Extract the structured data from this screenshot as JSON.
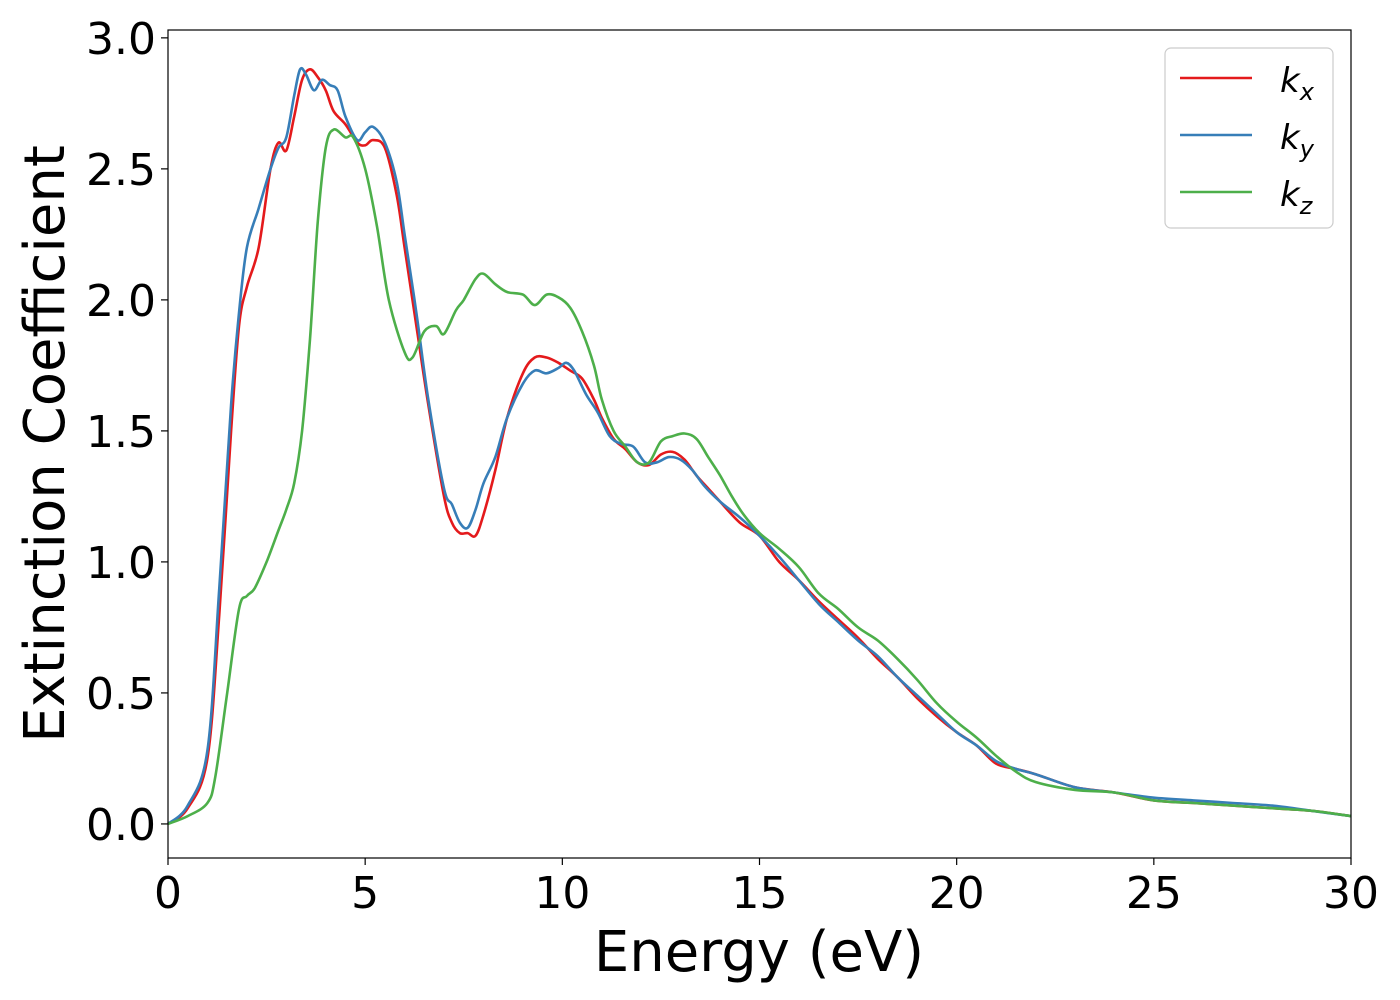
{
  "chart_data": {
    "type": "line",
    "xlabel": "Energy (eV)",
    "ylabel": "Extinction Coefficient",
    "xlim": [
      0,
      30
    ],
    "ylim": [
      -0.13,
      3.03
    ],
    "xticks": [
      0,
      5,
      10,
      15,
      20,
      25,
      30
    ],
    "xtick_labels": [
      "0",
      "5",
      "10",
      "15",
      "20",
      "25",
      "30"
    ],
    "yticks": [
      0.0,
      0.5,
      1.0,
      1.5,
      2.0,
      2.5,
      3.0
    ],
    "ytick_labels": [
      "0.0",
      "0.5",
      "1.0",
      "1.5",
      "2.0",
      "2.5",
      "3.0"
    ],
    "grid": false,
    "legend_position": "top-right",
    "series": [
      {
        "name": "k_x",
        "label_main": "k",
        "label_sub": "x",
        "color": "#e41a1c",
        "x": [
          0,
          0.5,
          1.0,
          1.3,
          1.6,
          1.8,
          2.0,
          2.3,
          2.6,
          2.8,
          3.0,
          3.2,
          3.4,
          3.6,
          3.8,
          4.0,
          4.2,
          4.5,
          4.8,
          5.0,
          5.2,
          5.5,
          5.8,
          6.0,
          6.3,
          6.6,
          7.0,
          7.2,
          7.4,
          7.6,
          7.8,
          8.0,
          8.3,
          8.6,
          9.0,
          9.3,
          9.6,
          9.9,
          10.2,
          10.5,
          10.8,
          11.0,
          11.3,
          11.6,
          11.9,
          12.2,
          12.5,
          12.8,
          13.1,
          13.4,
          13.7,
          14.0,
          14.5,
          15.0,
          15.5,
          16.0,
          16.5,
          17.0,
          17.5,
          18.0,
          18.5,
          19.0,
          19.5,
          20.0,
          20.5,
          21.0,
          21.5,
          22.0,
          23.0,
          24.0,
          25.0,
          26.0,
          27.0,
          28.0,
          29.0,
          30.0
        ],
        "values": [
          0.0,
          0.06,
          0.25,
          0.8,
          1.5,
          1.9,
          2.05,
          2.2,
          2.5,
          2.6,
          2.57,
          2.7,
          2.84,
          2.88,
          2.85,
          2.8,
          2.72,
          2.67,
          2.6,
          2.59,
          2.61,
          2.58,
          2.4,
          2.2,
          1.9,
          1.6,
          1.25,
          1.15,
          1.11,
          1.11,
          1.1,
          1.18,
          1.35,
          1.55,
          1.72,
          1.78,
          1.78,
          1.76,
          1.73,
          1.7,
          1.62,
          1.55,
          1.47,
          1.43,
          1.38,
          1.37,
          1.41,
          1.42,
          1.39,
          1.33,
          1.28,
          1.23,
          1.15,
          1.1,
          1.0,
          0.93,
          0.85,
          0.78,
          0.71,
          0.63,
          0.56,
          0.48,
          0.41,
          0.35,
          0.3,
          0.23,
          0.21,
          0.19,
          0.14,
          0.12,
          0.09,
          0.08,
          0.07,
          0.06,
          0.05,
          0.03
        ]
      },
      {
        "name": "k_y",
        "label_main": "k",
        "label_sub": "y",
        "color": "#377eb8",
        "x": [
          0,
          0.5,
          1.0,
          1.3,
          1.6,
          1.8,
          2.0,
          2.3,
          2.6,
          2.8,
          3.0,
          3.2,
          3.35,
          3.5,
          3.7,
          3.9,
          4.1,
          4.3,
          4.5,
          4.8,
          5.0,
          5.2,
          5.5,
          5.8,
          6.0,
          6.3,
          6.6,
          7.0,
          7.2,
          7.4,
          7.6,
          7.8,
          8.0,
          8.3,
          8.6,
          9.0,
          9.3,
          9.6,
          9.9,
          10.1,
          10.3,
          10.6,
          10.9,
          11.2,
          11.5,
          11.8,
          12.1,
          12.4,
          12.7,
          13.0,
          13.3,
          13.6,
          14.0,
          14.5,
          15.0,
          15.5,
          16.0,
          16.5,
          17.0,
          17.5,
          18.0,
          18.5,
          19.0,
          19.5,
          20.0,
          20.5,
          21.0,
          21.5,
          22.0,
          23.0,
          24.0,
          25.0,
          26.0,
          27.0,
          28.0,
          29.0,
          30.0
        ],
        "values": [
          0.0,
          0.07,
          0.28,
          0.9,
          1.6,
          1.95,
          2.2,
          2.35,
          2.5,
          2.58,
          2.62,
          2.78,
          2.88,
          2.86,
          2.8,
          2.84,
          2.82,
          2.8,
          2.7,
          2.61,
          2.64,
          2.66,
          2.6,
          2.45,
          2.25,
          1.95,
          1.62,
          1.28,
          1.22,
          1.15,
          1.13,
          1.2,
          1.3,
          1.4,
          1.55,
          1.68,
          1.73,
          1.72,
          1.74,
          1.76,
          1.73,
          1.64,
          1.57,
          1.48,
          1.45,
          1.44,
          1.38,
          1.38,
          1.4,
          1.39,
          1.35,
          1.29,
          1.23,
          1.17,
          1.1,
          1.02,
          0.93,
          0.84,
          0.77,
          0.7,
          0.64,
          0.56,
          0.49,
          0.42,
          0.35,
          0.3,
          0.24,
          0.21,
          0.19,
          0.14,
          0.12,
          0.1,
          0.09,
          0.08,
          0.07,
          0.05,
          0.03
        ]
      },
      {
        "name": "k_z",
        "label_main": "k",
        "label_sub": "z",
        "color": "#4daf4a",
        "x": [
          0,
          0.5,
          1.0,
          1.2,
          1.5,
          1.8,
          2.0,
          2.2,
          2.5,
          2.8,
          3.0,
          3.2,
          3.4,
          3.6,
          3.8,
          4.0,
          4.2,
          4.5,
          4.7,
          5.0,
          5.3,
          5.6,
          6.0,
          6.2,
          6.5,
          6.8,
          7.0,
          7.3,
          7.5,
          7.8,
          8.0,
          8.3,
          8.6,
          9.0,
          9.3,
          9.6,
          9.9,
          10.2,
          10.5,
          10.8,
          11.0,
          11.3,
          11.6,
          11.9,
          12.2,
          12.5,
          12.8,
          13.1,
          13.4,
          13.7,
          14.0,
          14.3,
          14.6,
          15.0,
          15.5,
          16.0,
          16.5,
          17.0,
          17.5,
          18.0,
          18.5,
          19.0,
          19.5,
          20.0,
          20.5,
          21.0,
          21.5,
          22.0,
          23.0,
          24.0,
          25.0,
          26.0,
          27.0,
          28.0,
          29.0,
          30.0
        ],
        "values": [
          0.0,
          0.03,
          0.08,
          0.18,
          0.5,
          0.82,
          0.87,
          0.9,
          1.0,
          1.12,
          1.2,
          1.3,
          1.5,
          1.85,
          2.3,
          2.58,
          2.65,
          2.62,
          2.62,
          2.5,
          2.28,
          2.0,
          1.8,
          1.78,
          1.88,
          1.9,
          1.87,
          1.96,
          2.0,
          2.08,
          2.1,
          2.06,
          2.03,
          2.02,
          1.98,
          2.02,
          2.01,
          1.97,
          1.88,
          1.75,
          1.62,
          1.5,
          1.44,
          1.38,
          1.38,
          1.46,
          1.48,
          1.49,
          1.47,
          1.4,
          1.33,
          1.25,
          1.18,
          1.11,
          1.05,
          0.98,
          0.88,
          0.82,
          0.75,
          0.7,
          0.63,
          0.55,
          0.46,
          0.39,
          0.33,
          0.26,
          0.2,
          0.16,
          0.13,
          0.12,
          0.09,
          0.08,
          0.07,
          0.06,
          0.05,
          0.03
        ]
      }
    ]
  }
}
